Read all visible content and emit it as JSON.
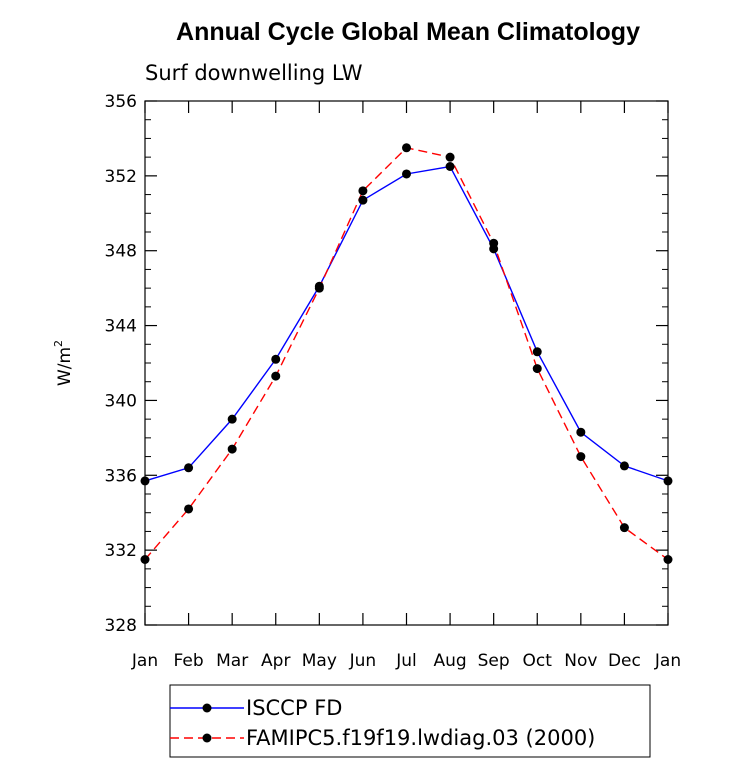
{
  "chart_data": {
    "type": "line",
    "title": "Annual Cycle Global Mean Climatology",
    "subtitle": "Surf downwelling LW",
    "ylabel_base": "W/m",
    "ylabel_sup": "2",
    "xlabel": "",
    "categories": [
      "Jan",
      "Feb",
      "Mar",
      "Apr",
      "May",
      "Jun",
      "Jul",
      "Aug",
      "Sep",
      "Oct",
      "Nov",
      "Dec",
      "Jan"
    ],
    "ylim": [
      328,
      356
    ],
    "yticks": [
      328,
      332,
      336,
      340,
      344,
      348,
      352,
      356
    ],
    "grid": false,
    "legend_position": "bottom",
    "series": [
      {
        "name": "ISCCP FD",
        "color": "#0000ff",
        "dash": "solid",
        "marker": "filled-circle",
        "values": [
          335.7,
          336.4,
          339.0,
          342.2,
          346.1,
          350.7,
          352.1,
          352.5,
          348.1,
          342.6,
          338.3,
          336.5,
          335.7
        ]
      },
      {
        "name": "FAMIPC5.f19f19.lwdiag.03 (2000)",
        "color": "#ff0000",
        "dash": "dashed",
        "marker": "filled-circle",
        "values": [
          331.5,
          334.2,
          337.4,
          341.3,
          346.0,
          351.2,
          353.5,
          353.0,
          348.4,
          341.7,
          337.0,
          333.2,
          331.5
        ]
      }
    ]
  }
}
